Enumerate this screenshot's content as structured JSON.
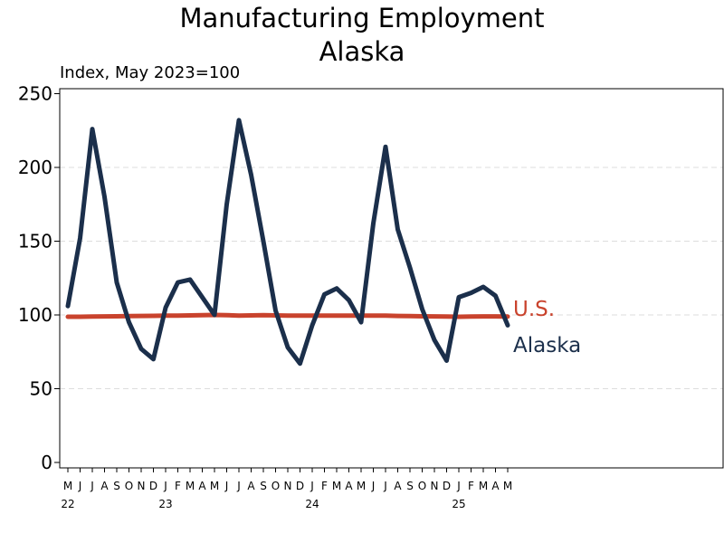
{
  "chart_data": {
    "type": "line",
    "title": "Manufacturing Employment",
    "subtitle": "Alaska",
    "ylabel": "Index, May 2023=100",
    "xlabel": "",
    "ylim": [
      0,
      250
    ],
    "yticks": [
      0,
      50,
      100,
      150,
      200,
      250
    ],
    "grid": "horizontal-dashed",
    "month_ticks": [
      "M",
      "J",
      "J",
      "A",
      "S",
      "O",
      "N",
      "D",
      "J",
      "F",
      "M",
      "A",
      "M",
      "J",
      "J",
      "A",
      "S",
      "O",
      "N",
      "D",
      "J",
      "F",
      "M",
      "A",
      "M",
      "J",
      "J",
      "A",
      "S",
      "O",
      "N",
      "D",
      "J",
      "F",
      "M",
      "A",
      "M"
    ],
    "year_ticks": [
      {
        "label": "22",
        "month_index": 0
      },
      {
        "label": "23",
        "month_index": 8
      },
      {
        "label": "24",
        "month_index": 20
      },
      {
        "label": "25",
        "month_index": 32
      }
    ],
    "x": [
      "2022-05",
      "2022-06",
      "2022-07",
      "2022-08",
      "2022-09",
      "2022-10",
      "2022-11",
      "2022-12",
      "2023-01",
      "2023-02",
      "2023-03",
      "2023-04",
      "2023-05",
      "2023-06",
      "2023-07",
      "2023-08",
      "2023-09",
      "2023-10",
      "2023-11",
      "2023-12",
      "2024-01",
      "2024-02",
      "2024-03",
      "2024-04",
      "2024-05",
      "2024-06",
      "2024-07",
      "2024-08",
      "2024-09",
      "2024-10",
      "2024-11",
      "2024-12",
      "2025-01",
      "2025-02",
      "2025-03",
      "2025-04",
      "2025-05"
    ],
    "series": [
      {
        "name": "U.S.",
        "color": "#c9432d",
        "values": [
          98.8,
          98.8,
          98.9,
          99.0,
          99.1,
          99.2,
          99.3,
          99.4,
          99.5,
          99.6,
          99.7,
          99.8,
          100.0,
          99.8,
          99.6,
          99.7,
          99.8,
          99.7,
          99.6,
          99.6,
          99.6,
          99.5,
          99.5,
          99.6,
          99.6,
          99.5,
          99.5,
          99.3,
          99.2,
          99.1,
          99.0,
          98.9,
          98.8,
          98.9,
          99.0,
          99.0,
          98.9
        ]
      },
      {
        "name": "Alaska",
        "color": "#1b2f4b",
        "values": [
          106,
          152,
          226,
          180,
          122,
          95,
          77,
          70,
          105,
          122,
          124,
          112,
          100,
          175,
          232,
          195,
          150,
          103,
          78,
          67,
          93,
          114,
          118,
          110,
          95,
          162,
          214,
          158,
          132,
          104,
          83,
          69,
          112,
          115,
          119,
          113,
          93
        ]
      }
    ]
  }
}
